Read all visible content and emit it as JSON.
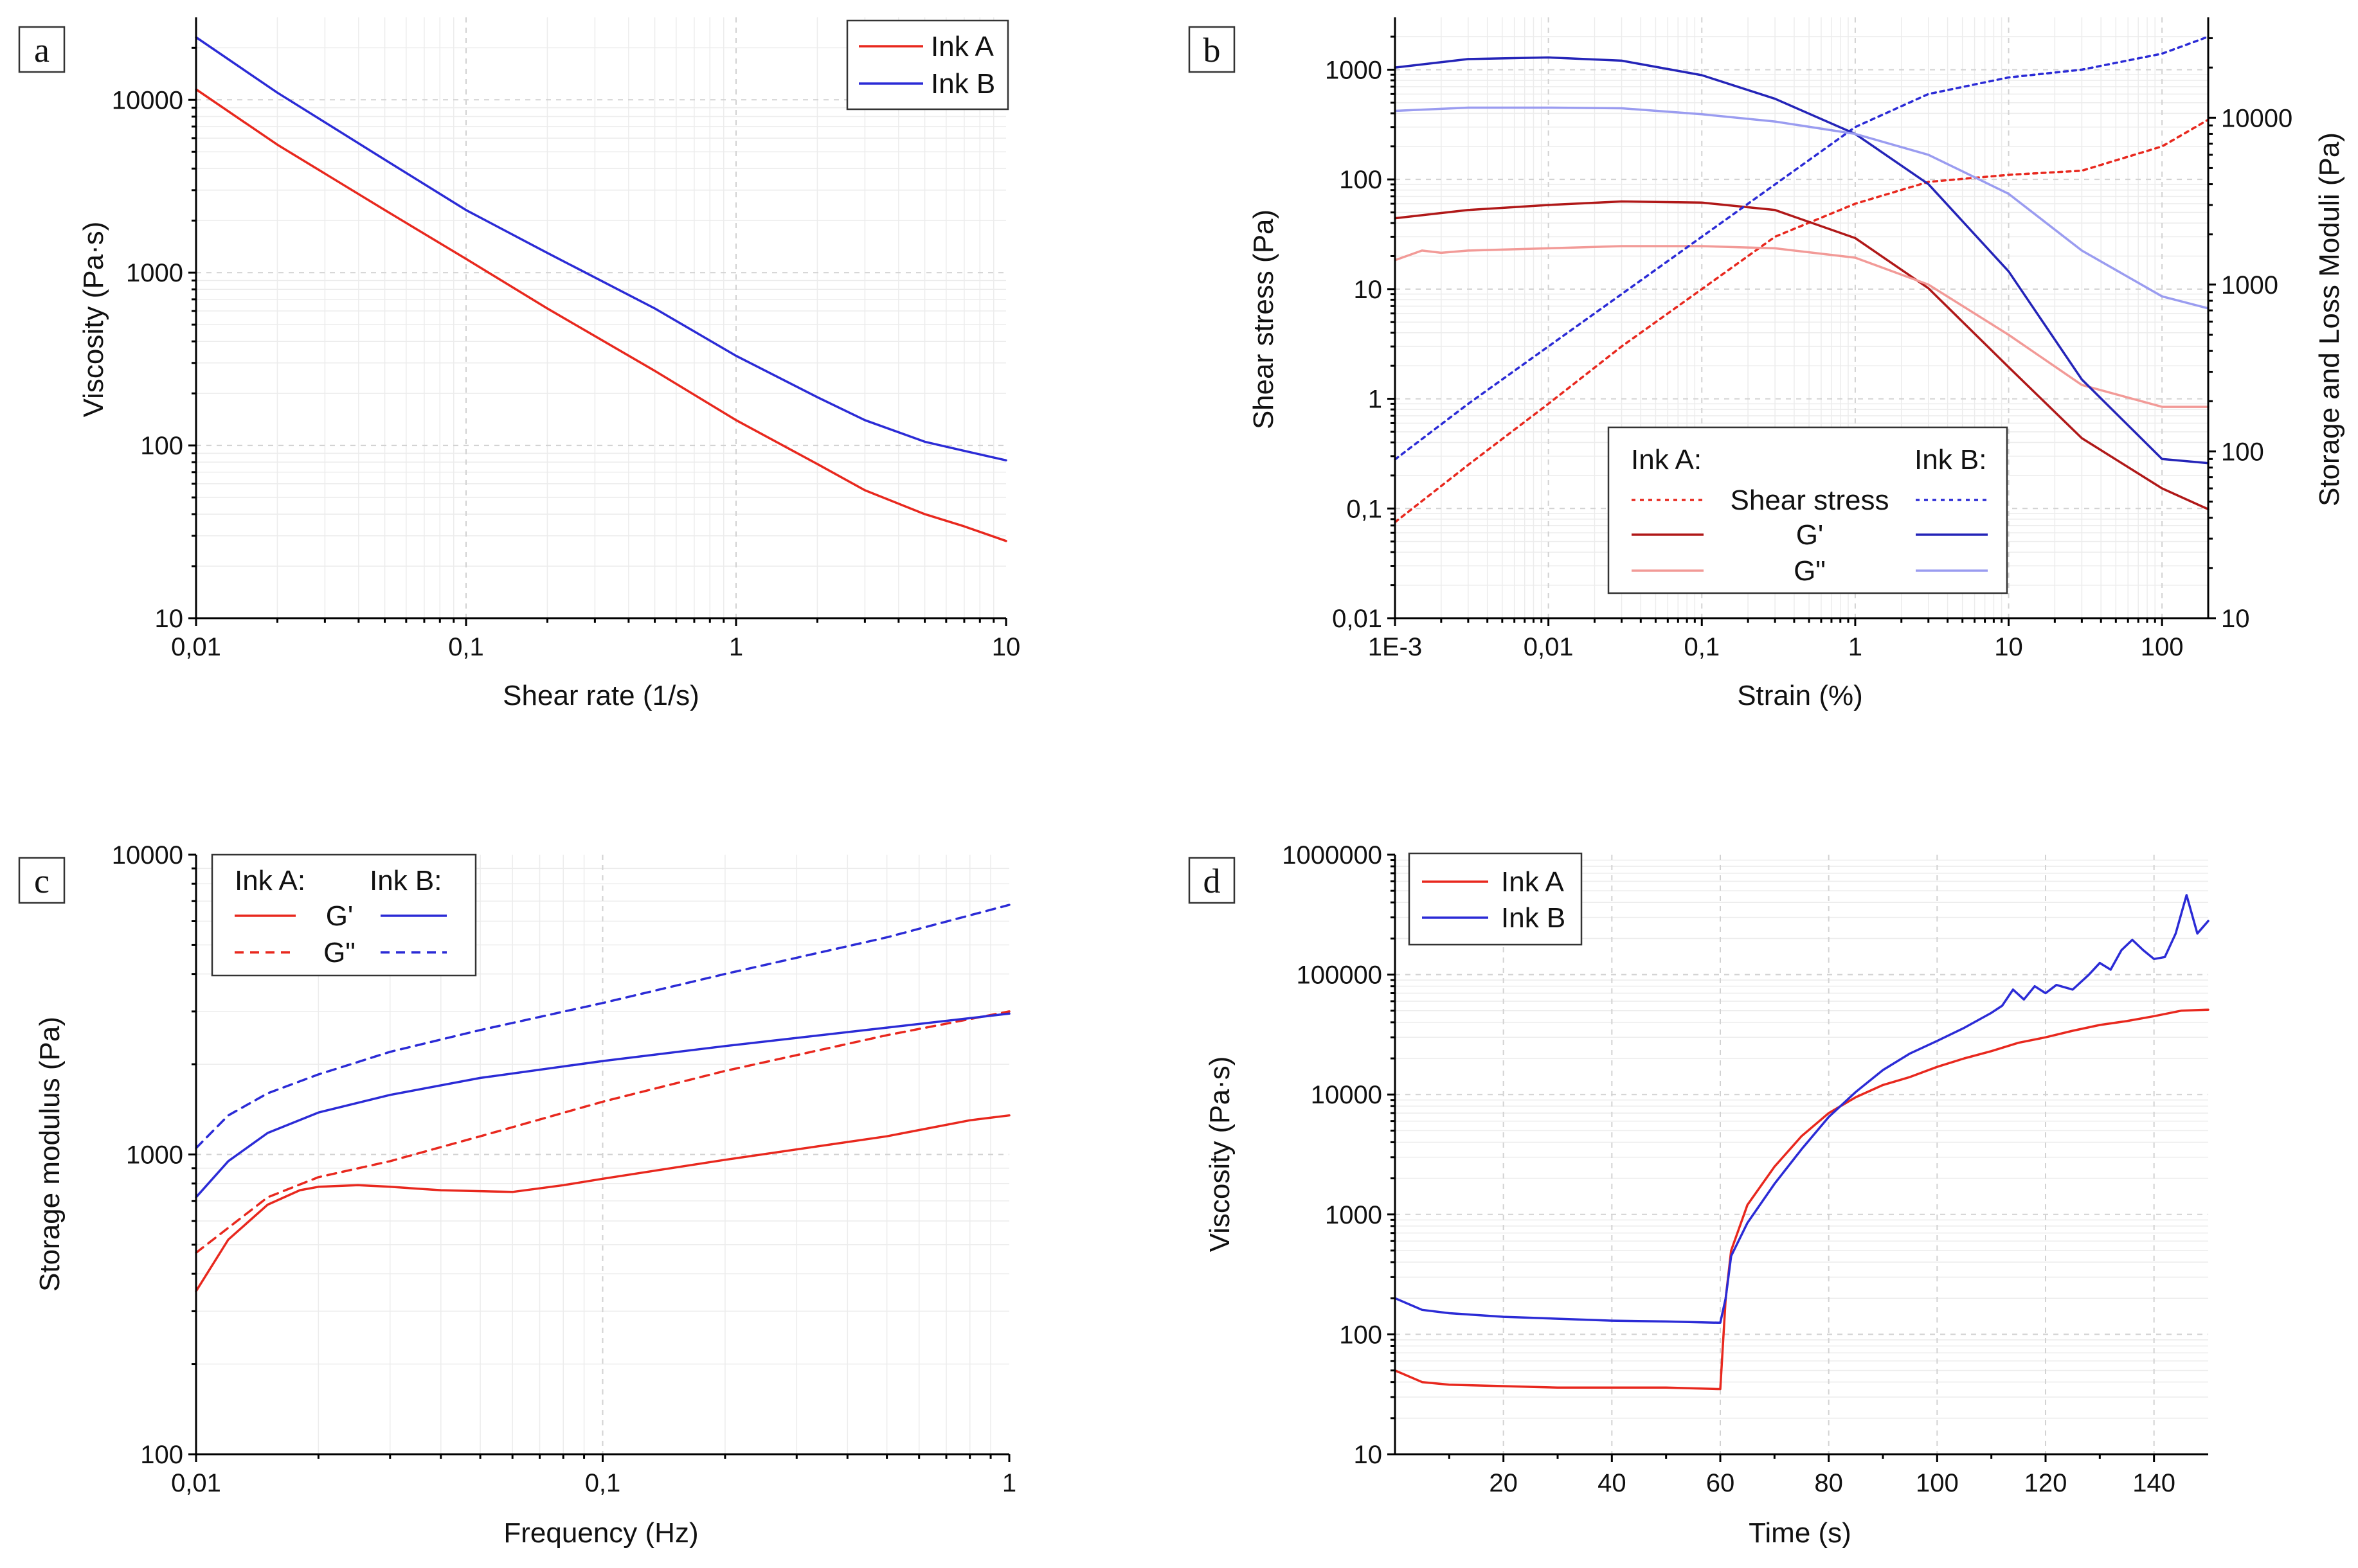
{
  "figure": {
    "colors": {
      "ink_a": "#e8281e",
      "ink_b": "#2b2bd6",
      "ink_a_dark": "#b01818",
      "ink_a_light": "#f29a97",
      "ink_b_dark": "#2424b8",
      "ink_b_light": "#9a9cf0"
    }
  },
  "chart_data": [
    {
      "id": "a",
      "panel_label": "a",
      "type": "line",
      "xscale": "log",
      "yscale": "log",
      "xlim": [
        0.01,
        10
      ],
      "ylim": [
        10,
        30000
      ],
      "xlabel": "Shear rate (1/s)",
      "ylabel": "Viscosity (Pa·s)",
      "xticks": [
        {
          "v": 0.01,
          "label": "0,01"
        },
        {
          "v": 0.1,
          "label": "0,1"
        },
        {
          "v": 1,
          "label": "1"
        },
        {
          "v": 10,
          "label": "10"
        }
      ],
      "yticks": [
        {
          "v": 10,
          "label": "10"
        },
        {
          "v": 100,
          "label": "100"
        },
        {
          "v": 1000,
          "label": "1000"
        },
        {
          "v": 10000,
          "label": "10000"
        }
      ],
      "legend_position": "top-right",
      "series": [
        {
          "name": "Ink A",
          "color": "#e8281e",
          "dash": "",
          "x": [
            0.01,
            0.02,
            0.05,
            0.1,
            0.2,
            0.5,
            1,
            2,
            3,
            5,
            7,
            10
          ],
          "y": [
            11500,
            5500,
            2300,
            1200,
            620,
            270,
            140,
            78,
            55,
            40,
            34,
            28
          ]
        },
        {
          "name": "Ink B",
          "color": "#2b2bd6",
          "dash": "",
          "x": [
            0.01,
            0.02,
            0.05,
            0.1,
            0.2,
            0.5,
            1,
            2,
            3,
            5,
            7,
            10
          ],
          "y": [
            23000,
            11000,
            4500,
            2300,
            1300,
            620,
            330,
            190,
            140,
            105,
            93,
            82
          ]
        }
      ]
    },
    {
      "id": "b",
      "panel_label": "b",
      "type": "line",
      "xscale": "log",
      "yscale": "log",
      "y2scale": "log",
      "xlim": [
        0.001,
        200
      ],
      "ylim": [
        0.01,
        3000
      ],
      "y2lim": [
        10,
        40000
      ],
      "xlabel": "Strain (%)",
      "ylabel": "Shear stress (Pa)",
      "y2label": "Storage and Loss Moduli (Pa)",
      "xticks": [
        {
          "v": 0.001,
          "label": "1E-3"
        },
        {
          "v": 0.01,
          "label": "0,01"
        },
        {
          "v": 0.1,
          "label": "0,1"
        },
        {
          "v": 1,
          "label": "1"
        },
        {
          "v": 10,
          "label": "10"
        },
        {
          "v": 100,
          "label": "100"
        }
      ],
      "yticks": [
        {
          "v": 0.01,
          "label": "0,01"
        },
        {
          "v": 0.1,
          "label": "0,1"
        },
        {
          "v": 1,
          "label": "1"
        },
        {
          "v": 10,
          "label": "10"
        },
        {
          "v": 100,
          "label": "100"
        },
        {
          "v": 1000,
          "label": "1000"
        }
      ],
      "y2ticks": [
        {
          "v": 10,
          "label": "10"
        },
        {
          "v": 100,
          "label": "100"
        },
        {
          "v": 1000,
          "label": "1000"
        },
        {
          "v": 10000,
          "label": "10000"
        }
      ],
      "legend": {
        "position": "bottom-center",
        "ink_a_title": "Ink A:",
        "ink_b_title": "Ink B:",
        "rows": [
          "Shear stress",
          "G'",
          "G\""
        ]
      },
      "series": [
        {
          "name": "Ink A Shear stress",
          "axis": "y",
          "color": "#e8281e",
          "dash": "6 7",
          "x": [
            0.001,
            0.003,
            0.01,
            0.03,
            0.1,
            0.3,
            1,
            3,
            10,
            30,
            100,
            200
          ],
          "y": [
            0.075,
            0.25,
            0.9,
            3,
            10,
            30,
            60,
            95,
            110,
            120,
            200,
            350
          ]
        },
        {
          "name": "Ink A G'",
          "axis": "y2",
          "color": "#b01818",
          "dash": "",
          "x": [
            0.001,
            0.003,
            0.01,
            0.03,
            0.1,
            0.3,
            1,
            3,
            10,
            30,
            100,
            200
          ],
          "y": [
            2500,
            2800,
            3000,
            3150,
            3100,
            2800,
            1900,
            950,
            320,
            120,
            60,
            45
          ]
        },
        {
          "name": "Ink A G\"",
          "axis": "y2",
          "color": "#f29a97",
          "dash": "",
          "x": [
            0.001,
            0.0015,
            0.002,
            0.003,
            0.01,
            0.03,
            0.1,
            0.3,
            1,
            3,
            10,
            30,
            100,
            200
          ],
          "y": [
            1400,
            1600,
            1550,
            1600,
            1650,
            1700,
            1700,
            1650,
            1450,
            1000,
            500,
            250,
            185,
            185
          ]
        },
        {
          "name": "Ink B Shear stress",
          "axis": "y",
          "color": "#2b2bd6",
          "dash": "6 7",
          "x": [
            0.001,
            0.003,
            0.01,
            0.03,
            0.1,
            0.3,
            1,
            3,
            10,
            30,
            100,
            200
          ],
          "y": [
            0.28,
            0.9,
            3,
            9,
            30,
            90,
            300,
            600,
            850,
            1000,
            1400,
            2000
          ]
        },
        {
          "name": "Ink B G'",
          "axis": "y2",
          "color": "#2424b8",
          "dash": "",
          "x": [
            0.001,
            0.003,
            0.01,
            0.03,
            0.1,
            0.3,
            1,
            3,
            10,
            30,
            100,
            200
          ],
          "y": [
            20000,
            22500,
            23000,
            22000,
            18000,
            13000,
            8000,
            4000,
            1200,
            270,
            90,
            85
          ]
        },
        {
          "name": "Ink B G\"",
          "axis": "y2",
          "color": "#9a9cf0",
          "dash": "",
          "x": [
            0.001,
            0.003,
            0.01,
            0.03,
            0.1,
            0.3,
            1,
            3,
            10,
            30,
            100,
            200
          ],
          "y": [
            11000,
            11500,
            11500,
            11400,
            10500,
            9500,
            8000,
            6000,
            3500,
            1600,
            850,
            720
          ]
        }
      ]
    },
    {
      "id": "c",
      "panel_label": "c",
      "type": "line",
      "xscale": "log",
      "yscale": "log",
      "xlim": [
        0.01,
        1
      ],
      "ylim": [
        100,
        10000
      ],
      "xlabel": "Frequency (Hz)",
      "ylabel": "Storage modulus (Pa)",
      "xticks": [
        {
          "v": 0.01,
          "label": "0,01"
        },
        {
          "v": 0.1,
          "label": "0,1"
        },
        {
          "v": 1,
          "label": "1"
        }
      ],
      "yticks": [
        {
          "v": 100,
          "label": "100"
        },
        {
          "v": 1000,
          "label": "1000"
        },
        {
          "v": 10000,
          "label": "10000"
        }
      ],
      "legend": {
        "position": "top-left",
        "ink_a_title": "Ink A:",
        "ink_b_title": "Ink B:",
        "rows": [
          "G'",
          "G\""
        ]
      },
      "series": [
        {
          "name": "Ink A G'",
          "color": "#e8281e",
          "dash": "",
          "x": [
            0.01,
            0.012,
            0.015,
            0.018,
            0.02,
            0.025,
            0.03,
            0.04,
            0.06,
            0.08,
            0.1,
            0.2,
            0.5,
            0.8,
            1
          ],
          "y": [
            350,
            520,
            680,
            760,
            780,
            790,
            780,
            760,
            750,
            790,
            830,
            960,
            1150,
            1300,
            1350
          ]
        },
        {
          "name": "Ink A G\"",
          "color": "#e8281e",
          "dash": "14 10",
          "x": [
            0.01,
            0.015,
            0.02,
            0.03,
            0.05,
            0.1,
            0.2,
            0.5,
            1
          ],
          "y": [
            470,
            720,
            840,
            950,
            1150,
            1500,
            1900,
            2500,
            3000
          ]
        },
        {
          "name": "Ink B G'",
          "color": "#2b2bd6",
          "dash": "",
          "x": [
            0.01,
            0.012,
            0.015,
            0.02,
            0.03,
            0.05,
            0.1,
            0.2,
            0.5,
            1
          ],
          "y": [
            720,
            950,
            1180,
            1380,
            1580,
            1800,
            2050,
            2300,
            2650,
            2950
          ]
        },
        {
          "name": "Ink B G\"",
          "color": "#2b2bd6",
          "dash": "14 10",
          "x": [
            0.01,
            0.012,
            0.015,
            0.02,
            0.03,
            0.05,
            0.1,
            0.2,
            0.5,
            1
          ],
          "y": [
            1050,
            1350,
            1600,
            1850,
            2200,
            2600,
            3200,
            4000,
            5300,
            6800
          ]
        }
      ]
    },
    {
      "id": "d",
      "panel_label": "d",
      "type": "line",
      "xscale": "linear",
      "yscale": "log",
      "xlim": [
        0,
        150
      ],
      "ylim": [
        10,
        1000000
      ],
      "xlabel": "Time (s)",
      "ylabel": "Viscosity (Pa·s)",
      "xticks": [
        {
          "v": 20,
          "label": "20"
        },
        {
          "v": 40,
          "label": "40"
        },
        {
          "v": 60,
          "label": "60"
        },
        {
          "v": 80,
          "label": "80"
        },
        {
          "v": 100,
          "label": "100"
        },
        {
          "v": 120,
          "label": "120"
        },
        {
          "v": 140,
          "label": "140"
        }
      ],
      "yticks": [
        {
          "v": 10,
          "label": "10"
        },
        {
          "v": 100,
          "label": "100"
        },
        {
          "v": 1000,
          "label": "1000"
        },
        {
          "v": 10000,
          "label": "10000"
        },
        {
          "v": 100000,
          "label": "100000"
        },
        {
          "v": 1000000,
          "label": "1000000"
        }
      ],
      "legend_position": "top-left",
      "series": [
        {
          "name": "Ink A",
          "color": "#e8281e",
          "dash": "",
          "x": [
            0,
            5,
            10,
            20,
            30,
            40,
            50,
            59.5,
            60,
            61,
            62,
            65,
            70,
            75,
            80,
            85,
            90,
            95,
            100,
            105,
            110,
            115,
            120,
            125,
            130,
            135,
            140,
            145,
            150
          ],
          "y": [
            50,
            40,
            38,
            37,
            36,
            36,
            36,
            35,
            35,
            200,
            500,
            1200,
            2500,
            4500,
            7000,
            9500,
            12000,
            14000,
            17000,
            20000,
            23000,
            27000,
            30000,
            34000,
            38000,
            41000,
            45000,
            50000,
            51000
          ]
        },
        {
          "name": "Ink B",
          "color": "#2b2bd6",
          "dash": "",
          "x": [
            0,
            5,
            10,
            20,
            30,
            40,
            50,
            59.5,
            60,
            61,
            62,
            65,
            70,
            75,
            80,
            85,
            90,
            95,
            100,
            105,
            110,
            112,
            114,
            116,
            118,
            120,
            122,
            125,
            128,
            130,
            132,
            134,
            136,
            138,
            140,
            142,
            144,
            146,
            148,
            150
          ],
          "y": [
            200,
            160,
            150,
            140,
            135,
            130,
            128,
            125,
            125,
            200,
            450,
            850,
            1800,
            3500,
            6500,
            10500,
            16000,
            22000,
            28000,
            36000,
            48000,
            55000,
            75000,
            62000,
            80000,
            70000,
            82000,
            75000,
            100000,
            125000,
            110000,
            160000,
            195000,
            160000,
            135000,
            140000,
            220000,
            460000,
            220000,
            280000
          ]
        }
      ]
    }
  ],
  "legend_a": {
    "items": [
      "Ink A",
      "Ink B"
    ]
  },
  "legend_d": {
    "items": [
      "Ink A",
      "Ink B"
    ]
  }
}
